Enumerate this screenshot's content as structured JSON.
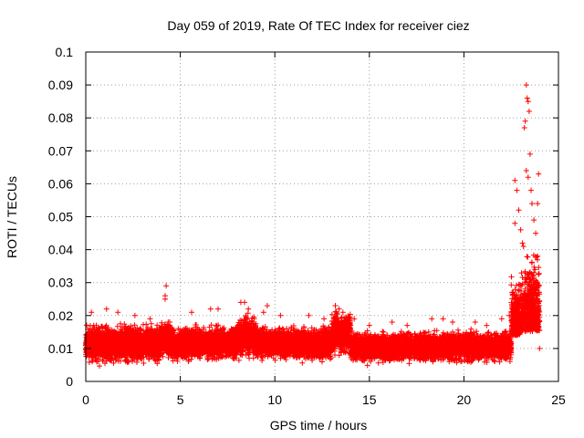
{
  "chart_data": {
    "type": "scatter",
    "title": "Day 059 of 2019, Rate Of TEC Index for receiver ciez",
    "xlabel": "GPS time / hours",
    "ylabel": "ROTI / TECUs",
    "xlim": [
      0,
      25
    ],
    "ylim": [
      0,
      0.1
    ],
    "xticks": [
      0,
      5,
      10,
      15,
      20,
      25
    ],
    "xtick_labels": [
      "0",
      "5",
      "10",
      "15",
      "20",
      "25"
    ],
    "yticks": [
      0,
      0.01,
      0.02,
      0.03,
      0.04,
      0.05,
      0.06,
      0.07,
      0.08,
      0.09,
      0.1
    ],
    "ytick_labels": [
      "0",
      "0.01",
      "0.02",
      "0.03",
      "0.04",
      "0.05",
      "0.06",
      "0.07",
      "0.08",
      "0.09",
      "0.1"
    ],
    "grid": true,
    "marker": "+",
    "color": "#ff0000",
    "series": [
      {
        "name": "ROTI",
        "segments": [
          {
            "t_start": 0.0,
            "t_end": 4.0,
            "base": 0.0115,
            "spread": 0.0045
          },
          {
            "t_start": 4.0,
            "t_end": 4.5,
            "base": 0.013,
            "spread": 0.004
          },
          {
            "t_start": 4.5,
            "t_end": 8.0,
            "base": 0.0115,
            "spread": 0.004
          },
          {
            "t_start": 8.0,
            "t_end": 9.0,
            "base": 0.0135,
            "spread": 0.005
          },
          {
            "t_start": 9.0,
            "t_end": 13.0,
            "base": 0.0115,
            "spread": 0.004
          },
          {
            "t_start": 13.0,
            "t_end": 14.0,
            "base": 0.0145,
            "spread": 0.005
          },
          {
            "t_start": 14.0,
            "t_end": 22.5,
            "base": 0.0105,
            "spread": 0.0035
          },
          {
            "t_start": 22.5,
            "t_end": 23.0,
            "base": 0.018,
            "spread": 0.01
          },
          {
            "t_start": 23.0,
            "t_end": 24.0,
            "base": 0.02,
            "spread": 0.012
          }
        ],
        "highlights": [
          [
            0.3,
            0.021
          ],
          [
            1.1,
            0.022
          ],
          [
            1.7,
            0.021
          ],
          [
            2.6,
            0.02
          ],
          [
            3.4,
            0.019
          ],
          [
            4.2,
            0.025
          ],
          [
            4.2,
            0.026
          ],
          [
            4.25,
            0.029
          ],
          [
            5.6,
            0.021
          ],
          [
            6.6,
            0.022
          ],
          [
            7.0,
            0.022
          ],
          [
            8.2,
            0.024
          ],
          [
            8.4,
            0.024
          ],
          [
            8.6,
            0.022
          ],
          [
            9.4,
            0.021
          ],
          [
            9.6,
            0.023
          ],
          [
            10.3,
            0.02
          ],
          [
            11.8,
            0.02
          ],
          [
            12.6,
            0.019
          ],
          [
            13.2,
            0.023
          ],
          [
            13.4,
            0.022
          ],
          [
            13.6,
            0.021
          ],
          [
            14.2,
            0.019
          ],
          [
            15.0,
            0.017
          ],
          [
            16.2,
            0.018
          ],
          [
            17.0,
            0.017
          ],
          [
            18.3,
            0.019
          ],
          [
            18.9,
            0.019
          ],
          [
            19.4,
            0.018
          ],
          [
            20.6,
            0.018
          ],
          [
            21.2,
            0.017
          ],
          [
            22.0,
            0.019
          ],
          [
            22.4,
            0.02
          ],
          [
            22.6,
            0.022
          ],
          [
            22.7,
            0.061
          ],
          [
            22.8,
            0.058
          ],
          [
            22.9,
            0.052
          ],
          [
            22.7,
            0.048
          ],
          [
            23.0,
            0.046
          ],
          [
            23.1,
            0.042
          ],
          [
            23.15,
            0.041
          ],
          [
            23.2,
            0.077
          ],
          [
            23.25,
            0.079
          ],
          [
            23.3,
            0.09
          ],
          [
            23.35,
            0.086
          ],
          [
            23.4,
            0.085
          ],
          [
            23.45,
            0.082
          ],
          [
            23.3,
            0.064
          ],
          [
            23.4,
            0.062
          ],
          [
            23.5,
            0.069
          ],
          [
            23.55,
            0.058
          ],
          [
            23.6,
            0.054
          ],
          [
            23.7,
            0.049
          ],
          [
            23.8,
            0.045
          ],
          [
            23.9,
            0.038
          ],
          [
            23.95,
            0.063
          ],
          [
            23.9,
            0.054
          ],
          [
            23.6,
            0.036
          ],
          [
            23.7,
            0.033
          ],
          [
            23.5,
            0.028
          ],
          [
            23.8,
            0.03
          ],
          [
            23.9,
            0.025
          ],
          [
            23.95,
            0.018
          ],
          [
            24.0,
            0.01
          ]
        ]
      }
    ]
  }
}
